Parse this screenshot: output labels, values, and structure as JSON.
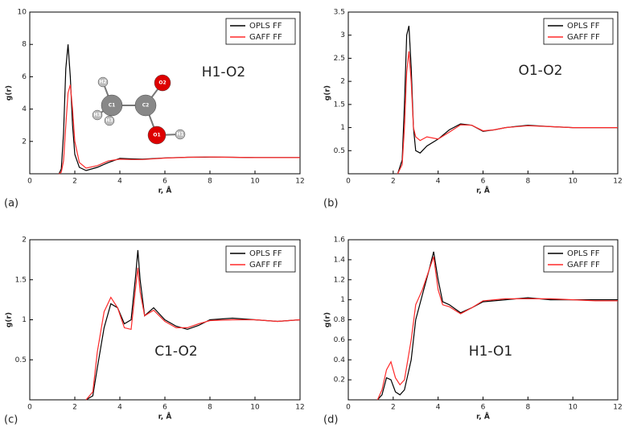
{
  "chart_data": [
    {
      "type": "line",
      "annotation": "H1-O2",
      "panel_label": "(a)",
      "x_label": "r, Å",
      "y_label": "g(r)",
      "inset_labels": [
        "H2",
        "C1",
        "C2",
        "O2",
        "O1",
        "H1",
        "H3",
        "H3"
      ],
      "x": [
        1.3,
        1.4,
        1.5,
        1.6,
        1.7,
        1.8,
        1.9,
        2.0,
        2.2,
        2.5,
        3,
        3.5,
        4,
        4.5,
        5,
        6,
        7,
        8,
        9,
        10,
        11,
        12
      ],
      "series": [
        {
          "name": "OPLS FF",
          "color": "#000000",
          "values": [
            0,
            0.3,
            2.5,
            6.5,
            8.0,
            6.0,
            3.0,
            1.2,
            0.4,
            0.2,
            0.4,
            0.7,
            0.95,
            0.92,
            0.9,
            0.98,
            1.02,
            1.03,
            1.02,
            1.0,
            1.0,
            1.0
          ]
        },
        {
          "name": "GAFF FF",
          "color": "#ff2a2a",
          "values": [
            0,
            0.1,
            0.8,
            3.0,
            5.0,
            5.5,
            4.0,
            2.0,
            0.7,
            0.35,
            0.5,
            0.8,
            0.9,
            0.88,
            0.88,
            0.97,
            1.02,
            1.04,
            1.02,
            1.0,
            1.0,
            1.0
          ]
        }
      ],
      "xlim": [
        0,
        12
      ],
      "ylim": [
        0,
        10
      ],
      "xticks": [
        0,
        2,
        4,
        6,
        8,
        10,
        12
      ],
      "yticks": [
        2,
        4,
        6,
        8,
        10
      ],
      "legend": "upper right"
    },
    {
      "type": "line",
      "annotation": "O1-O2",
      "panel_label": "(b)",
      "x_label": "r, Å",
      "y_label": "g(r)",
      "x": [
        2.2,
        2.4,
        2.5,
        2.6,
        2.7,
        2.8,
        2.9,
        3.0,
        3.2,
        3.5,
        4,
        4.5,
        5,
        5.5,
        6,
        6.5,
        7,
        8,
        9,
        10,
        11,
        12
      ],
      "series": [
        {
          "name": "OPLS FF",
          "color": "#000000",
          "values": [
            0,
            0.3,
            1.5,
            3.0,
            3.2,
            2.3,
            1.0,
            0.5,
            0.45,
            0.6,
            0.75,
            0.95,
            1.08,
            1.05,
            0.92,
            0.95,
            1.0,
            1.05,
            1.02,
            1.0,
            1.0,
            1.0
          ]
        },
        {
          "name": "GAFF FF",
          "color": "#ff2a2a",
          "values": [
            0,
            0.2,
            1.0,
            2.2,
            2.65,
            2.0,
            1.0,
            0.8,
            0.72,
            0.8,
            0.75,
            0.9,
            1.06,
            1.05,
            0.93,
            0.95,
            1.0,
            1.04,
            1.02,
            1.0,
            1.0,
            1.0
          ]
        }
      ],
      "xlim": [
        0,
        12
      ],
      "ylim": [
        0,
        3.5
      ],
      "xticks": [
        0,
        2,
        4,
        6,
        8,
        10,
        12
      ],
      "yticks": [
        0.5,
        1,
        1.5,
        2,
        2.5,
        3,
        3.5
      ],
      "legend": "upper right"
    },
    {
      "type": "line",
      "annotation": "C1-O2",
      "panel_label": "(c)",
      "x_label": "r, Å",
      "y_label": "g(r)",
      "x": [
        2.5,
        2.8,
        3.0,
        3.3,
        3.6,
        3.9,
        4.2,
        4.5,
        4.7,
        4.8,
        4.9,
        5.1,
        5.5,
        6,
        6.5,
        7,
        7.5,
        8,
        9,
        10,
        11,
        12
      ],
      "series": [
        {
          "name": "OPLS FF",
          "color": "#000000",
          "values": [
            0,
            0.05,
            0.4,
            0.9,
            1.2,
            1.15,
            0.95,
            1.0,
            1.55,
            1.87,
            1.5,
            1.05,
            1.15,
            1.0,
            0.92,
            0.88,
            0.93,
            1.0,
            1.02,
            1.0,
            0.98,
            1.0
          ]
        },
        {
          "name": "GAFF FF",
          "color": "#ff2a2a",
          "values": [
            0,
            0.1,
            0.6,
            1.1,
            1.28,
            1.15,
            0.9,
            0.88,
            1.4,
            1.65,
            1.35,
            1.05,
            1.12,
            0.98,
            0.9,
            0.9,
            0.95,
            0.99,
            1.0,
            1.0,
            0.98,
            1.0
          ]
        }
      ],
      "xlim": [
        0,
        12
      ],
      "ylim": [
        0,
        2
      ],
      "xticks": [
        0,
        2,
        4,
        6,
        8,
        10,
        12
      ],
      "yticks": [
        0.5,
        1,
        1.5,
        2
      ],
      "legend": "upper right"
    },
    {
      "type": "line",
      "annotation": "H1-O1",
      "panel_label": "(d)",
      "x_label": "r, Å",
      "y_label": "g(r)",
      "x": [
        1.3,
        1.5,
        1.7,
        1.9,
        2.1,
        2.3,
        2.5,
        2.8,
        3.0,
        3.3,
        3.6,
        3.8,
        4.0,
        4.2,
        4.5,
        5,
        5.5,
        6,
        7,
        8,
        9,
        10,
        11,
        12
      ],
      "series": [
        {
          "name": "OPLS FF",
          "color": "#000000",
          "values": [
            0,
            0.05,
            0.22,
            0.2,
            0.08,
            0.05,
            0.1,
            0.4,
            0.8,
            1.05,
            1.3,
            1.48,
            1.2,
            0.98,
            0.95,
            0.87,
            0.92,
            0.98,
            1.0,
            1.02,
            1.0,
            1.0,
            1.0,
            1.0
          ]
        },
        {
          "name": "GAFF FF",
          "color": "#ff2a2a",
          "values": [
            0,
            0.1,
            0.3,
            0.38,
            0.22,
            0.15,
            0.2,
            0.6,
            0.95,
            1.1,
            1.3,
            1.43,
            1.1,
            0.95,
            0.93,
            0.86,
            0.92,
            0.99,
            1.01,
            1.01,
            1.01,
            1.0,
            0.99,
            0.99
          ]
        }
      ],
      "xlim": [
        0,
        12
      ],
      "ylim": [
        0,
        1.6
      ],
      "xticks": [
        0,
        2,
        4,
        6,
        8,
        10,
        12
      ],
      "yticks": [
        0.2,
        0.4,
        0.6,
        0.8,
        1,
        1.2,
        1.4,
        1.6
      ],
      "legend": "upper right"
    }
  ]
}
